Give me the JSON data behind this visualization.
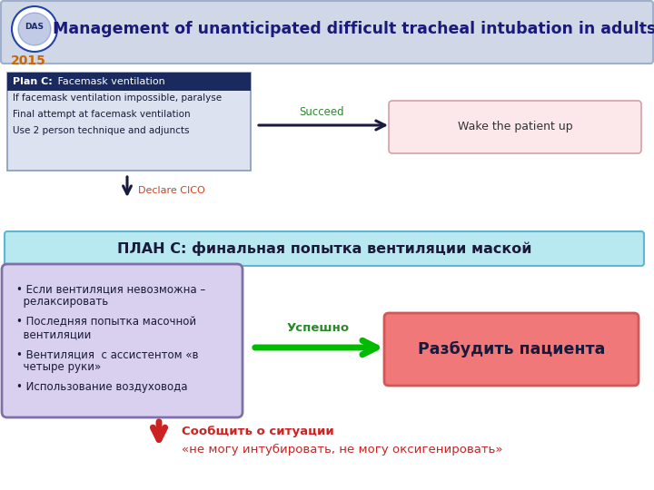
{
  "title": "Management of unanticipated difficult tracheal intubation in adults",
  "year": "2015",
  "plan_c_header_text": "Plan C:",
  "plan_c_header_text2": " Facemask ventilation",
  "plan_c_bullets": [
    "If facemask ventilation impossible, paralyse",
    "Final attempt at facemask ventilation",
    "Use 2 person technique and adjuncts"
  ],
  "succeed_label": "Succeed",
  "wake_box_text": "Wake the patient up",
  "declare_label": "Declare CICO",
  "plan_c_ru_title": "ПЛАН С: финальная попытка вентиляции маской",
  "uspeshno_label": "Успешно",
  "right_box_text": "Разбудить пациента",
  "bottom_label1": "Сообщить о ситуации",
  "bottom_label2": "«не могу интубировать, не могу оксигенировать»",
  "colors": {
    "page_bg": "#ffffff",
    "header_bg": "#d0d8e8",
    "header_border": "#a0b0cc",
    "plan_c_box_bg": "#dde2f0",
    "plan_c_box_border": "#8899bb",
    "plan_c_header_bg": "#1a2a5e",
    "wake_box_bg": "#fce8ea",
    "wake_box_border": "#d4a0a8",
    "plan_ru_bg": "#b8e8f0",
    "plan_ru_border": "#60b8d0",
    "left_box_bg": "#d8d0ee",
    "left_box_border": "#8070aa",
    "right_box_bg": "#f07878",
    "right_box_border": "#d05858",
    "arrow_dark": "#1a1a40",
    "arrow_green": "#00bb00",
    "arrow_red": "#cc2222",
    "succeed_color": "#2a8a2a",
    "uspeshno_color": "#2a8a2a",
    "declare_color": "#cc4422",
    "bottom_color": "#cc2222",
    "title_color": "#1a1a7a",
    "year_color": "#cc6600",
    "bullet_color": "#1a1a3a"
  }
}
